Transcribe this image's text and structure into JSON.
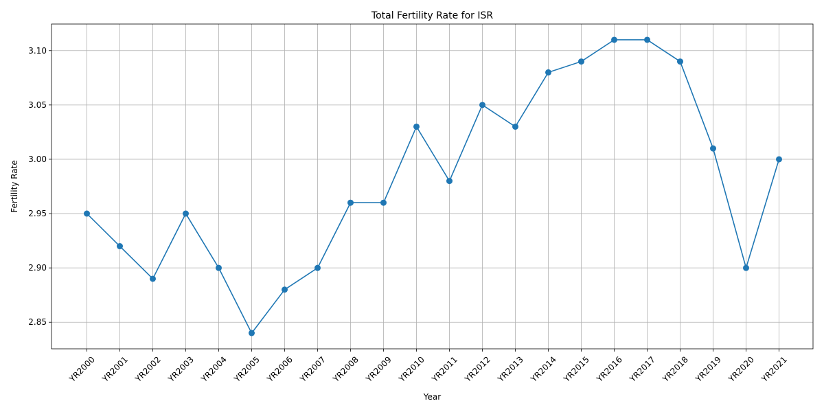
{
  "chart_data": {
    "type": "line",
    "title": "Total Fertility Rate for ISR",
    "xlabel": "Year",
    "ylabel": "Fertility Rate",
    "categories": [
      "YR2000",
      "YR2001",
      "YR2002",
      "YR2003",
      "YR2004",
      "YR2005",
      "YR2006",
      "YR2007",
      "YR2008",
      "YR2009",
      "YR2010",
      "YR2011",
      "YR2012",
      "YR2013",
      "YR2014",
      "YR2015",
      "YR2016",
      "YR2017",
      "YR2018",
      "YR2019",
      "YR2020",
      "YR2021"
    ],
    "series": [
      {
        "values": [
          2.95,
          2.92,
          2.89,
          2.95,
          2.9,
          2.84,
          2.88,
          2.9,
          2.96,
          2.96,
          3.03,
          2.98,
          3.05,
          3.03,
          3.08,
          3.09,
          3.11,
          3.11,
          3.09,
          3.01,
          2.9,
          3.0
        ],
        "color": "#1f77b4",
        "marker": "circle"
      }
    ],
    "ylim": [
      2.8255,
      3.1245
    ],
    "yticks": [
      "2.85",
      "2.90",
      "2.95",
      "3.00",
      "3.05",
      "3.10"
    ],
    "grid": true,
    "legend": "none"
  }
}
